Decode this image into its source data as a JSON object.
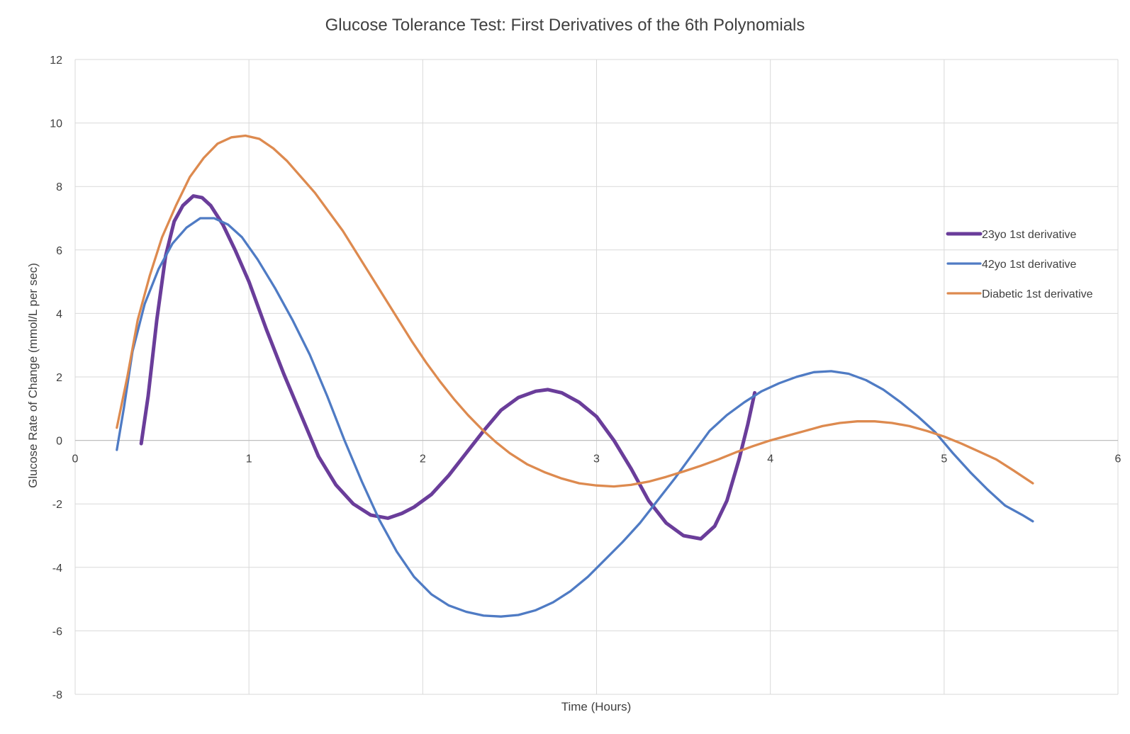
{
  "chart_data": {
    "type": "line",
    "title": "Glucose Tolerance Test: First Derivatives of the 6th Polynomials",
    "xlabel": "Time (Hours)",
    "ylabel": "Glucose Rate of Change (mmol/L per sec)",
    "xlim": [
      0,
      6
    ],
    "ylim": [
      -8,
      12
    ],
    "x_ticks": [
      0,
      1,
      2,
      3,
      4,
      5,
      6
    ],
    "y_ticks": [
      -8,
      -6,
      -4,
      -2,
      0,
      2,
      4,
      6,
      8,
      10,
      12
    ],
    "grid": true,
    "legend_position": "right",
    "series": [
      {
        "name": "23yo 1st derivative",
        "color": "#6a3d9a",
        "points": [
          [
            0.38,
            -0.1
          ],
          [
            0.42,
            1.4
          ],
          [
            0.47,
            3.8
          ],
          [
            0.52,
            5.8
          ],
          [
            0.57,
            6.9
          ],
          [
            0.62,
            7.4
          ],
          [
            0.68,
            7.7
          ],
          [
            0.73,
            7.65
          ],
          [
            0.78,
            7.4
          ],
          [
            0.85,
            6.8
          ],
          [
            0.92,
            6.0
          ],
          [
            1.0,
            5.0
          ],
          [
            1.1,
            3.5
          ],
          [
            1.2,
            2.1
          ],
          [
            1.3,
            0.8
          ],
          [
            1.4,
            -0.5
          ],
          [
            1.5,
            -1.4
          ],
          [
            1.6,
            -2.0
          ],
          [
            1.7,
            -2.35
          ],
          [
            1.8,
            -2.45
          ],
          [
            1.88,
            -2.3
          ],
          [
            1.95,
            -2.1
          ],
          [
            2.05,
            -1.7
          ],
          [
            2.15,
            -1.1
          ],
          [
            2.25,
            -0.4
          ],
          [
            2.35,
            0.3
          ],
          [
            2.45,
            0.95
          ],
          [
            2.55,
            1.35
          ],
          [
            2.65,
            1.55
          ],
          [
            2.72,
            1.6
          ],
          [
            2.8,
            1.5
          ],
          [
            2.9,
            1.2
          ],
          [
            3.0,
            0.75
          ],
          [
            3.1,
            0.0
          ],
          [
            3.2,
            -0.9
          ],
          [
            3.3,
            -1.9
          ],
          [
            3.4,
            -2.6
          ],
          [
            3.5,
            -3.0
          ],
          [
            3.6,
            -3.1
          ],
          [
            3.68,
            -2.7
          ],
          [
            3.75,
            -1.9
          ],
          [
            3.82,
            -0.6
          ],
          [
            3.87,
            0.5
          ],
          [
            3.91,
            1.5
          ]
        ]
      },
      {
        "name": "42yo 1st derivative",
        "color": "#4f7bc4",
        "points": [
          [
            0.24,
            -0.3
          ],
          [
            0.28,
            1.0
          ],
          [
            0.33,
            2.8
          ],
          [
            0.4,
            4.3
          ],
          [
            0.48,
            5.4
          ],
          [
            0.56,
            6.2
          ],
          [
            0.64,
            6.7
          ],
          [
            0.72,
            7.0
          ],
          [
            0.8,
            7.0
          ],
          [
            0.88,
            6.8
          ],
          [
            0.96,
            6.4
          ],
          [
            1.05,
            5.7
          ],
          [
            1.15,
            4.8
          ],
          [
            1.25,
            3.8
          ],
          [
            1.35,
            2.7
          ],
          [
            1.45,
            1.4
          ],
          [
            1.55,
            0.0
          ],
          [
            1.65,
            -1.3
          ],
          [
            1.75,
            -2.5
          ],
          [
            1.85,
            -3.5
          ],
          [
            1.95,
            -4.3
          ],
          [
            2.05,
            -4.85
          ],
          [
            2.15,
            -5.2
          ],
          [
            2.25,
            -5.4
          ],
          [
            2.35,
            -5.52
          ],
          [
            2.45,
            -5.55
          ],
          [
            2.55,
            -5.5
          ],
          [
            2.65,
            -5.35
          ],
          [
            2.75,
            -5.1
          ],
          [
            2.85,
            -4.75
          ],
          [
            2.95,
            -4.3
          ],
          [
            3.05,
            -3.75
          ],
          [
            3.15,
            -3.2
          ],
          [
            3.25,
            -2.6
          ],
          [
            3.35,
            -1.9
          ],
          [
            3.45,
            -1.2
          ],
          [
            3.55,
            -0.45
          ],
          [
            3.65,
            0.3
          ],
          [
            3.75,
            0.8
          ],
          [
            3.85,
            1.2
          ],
          [
            3.95,
            1.55
          ],
          [
            4.05,
            1.8
          ],
          [
            4.15,
            2.0
          ],
          [
            4.25,
            2.15
          ],
          [
            4.35,
            2.18
          ],
          [
            4.45,
            2.1
          ],
          [
            4.55,
            1.9
          ],
          [
            4.65,
            1.6
          ],
          [
            4.75,
            1.2
          ],
          [
            4.85,
            0.75
          ],
          [
            4.95,
            0.25
          ],
          [
            5.05,
            -0.4
          ],
          [
            5.15,
            -1.0
          ],
          [
            5.25,
            -1.55
          ],
          [
            5.35,
            -2.05
          ],
          [
            5.45,
            -2.35
          ],
          [
            5.51,
            -2.55
          ]
        ]
      },
      {
        "name": "Diabetic 1st derivative",
        "color": "#dd8a4f",
        "points": [
          [
            0.24,
            0.4
          ],
          [
            0.3,
            2.0
          ],
          [
            0.36,
            3.8
          ],
          [
            0.43,
            5.2
          ],
          [
            0.5,
            6.4
          ],
          [
            0.58,
            7.4
          ],
          [
            0.66,
            8.3
          ],
          [
            0.74,
            8.9
          ],
          [
            0.82,
            9.35
          ],
          [
            0.9,
            9.55
          ],
          [
            0.98,
            9.6
          ],
          [
            1.06,
            9.5
          ],
          [
            1.14,
            9.2
          ],
          [
            1.22,
            8.8
          ],
          [
            1.3,
            8.3
          ],
          [
            1.38,
            7.8
          ],
          [
            1.46,
            7.2
          ],
          [
            1.54,
            6.6
          ],
          [
            1.62,
            5.9
          ],
          [
            1.7,
            5.2
          ],
          [
            1.78,
            4.5
          ],
          [
            1.86,
            3.8
          ],
          [
            1.94,
            3.1
          ],
          [
            2.02,
            2.45
          ],
          [
            2.1,
            1.85
          ],
          [
            2.18,
            1.3
          ],
          [
            2.26,
            0.8
          ],
          [
            2.34,
            0.35
          ],
          [
            2.42,
            -0.05
          ],
          [
            2.5,
            -0.4
          ],
          [
            2.6,
            -0.75
          ],
          [
            2.7,
            -1.0
          ],
          [
            2.8,
            -1.2
          ],
          [
            2.9,
            -1.35
          ],
          [
            3.0,
            -1.42
          ],
          [
            3.1,
            -1.45
          ],
          [
            3.2,
            -1.4
          ],
          [
            3.3,
            -1.3
          ],
          [
            3.4,
            -1.15
          ],
          [
            3.5,
            -0.98
          ],
          [
            3.6,
            -0.8
          ],
          [
            3.7,
            -0.6
          ],
          [
            3.8,
            -0.38
          ],
          [
            3.9,
            -0.18
          ],
          [
            4.0,
            0.0
          ],
          [
            4.1,
            0.15
          ],
          [
            4.2,
            0.3
          ],
          [
            4.3,
            0.45
          ],
          [
            4.4,
            0.55
          ],
          [
            4.5,
            0.6
          ],
          [
            4.6,
            0.6
          ],
          [
            4.7,
            0.55
          ],
          [
            4.8,
            0.45
          ],
          [
            4.9,
            0.3
          ],
          [
            5.0,
            0.12
          ],
          [
            5.1,
            -0.1
          ],
          [
            5.2,
            -0.35
          ],
          [
            5.3,
            -0.6
          ],
          [
            5.4,
            -0.95
          ],
          [
            5.51,
            -1.35
          ]
        ]
      }
    ]
  }
}
